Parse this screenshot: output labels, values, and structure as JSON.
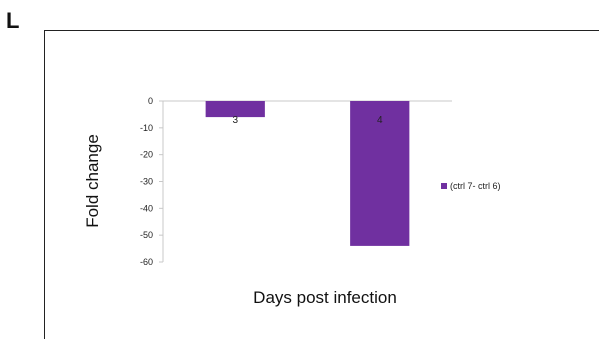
{
  "panel_label": "L",
  "chart_data": {
    "type": "bar",
    "categories": [
      "3",
      "4"
    ],
    "series": [
      {
        "name": "(ctrl 7- ctrl 6)",
        "values": [
          -6,
          -54
        ],
        "color": "#7030a0"
      }
    ],
    "xlabel": "Days post infection",
    "ylabel": "Fold change",
    "ylim": [
      -60,
      0
    ],
    "yticks": [
      0,
      -10,
      -20,
      -30,
      -40,
      -50,
      -60
    ],
    "grid": false,
    "legend_position": "right"
  }
}
